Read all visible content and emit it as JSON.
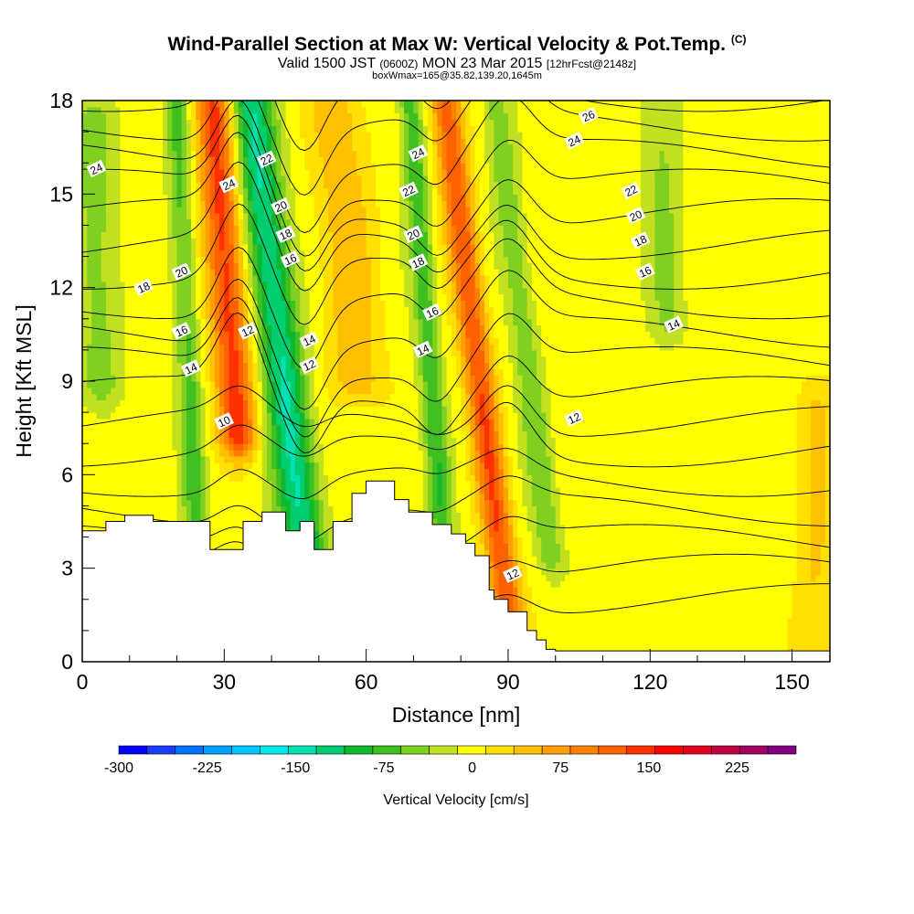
{
  "header": {
    "title": "Wind-Parallel Section at Max W: Vertical Velocity & Pot.Temp.",
    "copyright": "(C)",
    "valid_main": "Valid 1500 JST",
    "valid_utc": "(0600Z)",
    "valid_date": "MON 23 Mar 2015",
    "valid_fcst": "[12hrFcst@2148z]",
    "box_line": "boxWmax=165@35.82,139.20,1645m"
  },
  "chart_data": {
    "type": "heatmap",
    "xlabel": "Distance [nm]",
    "ylabel": "Height [Kft MSL]",
    "xlim": [
      0,
      158
    ],
    "ylim": [
      0,
      18
    ],
    "x_ticks": [
      "0",
      "30",
      "60",
      "90",
      "120",
      "150"
    ],
    "x_tick_values": [
      0,
      30,
      60,
      90,
      120,
      150
    ],
    "y_ticks": [
      "0",
      "3",
      "6",
      "9",
      "12",
      "15",
      "18"
    ],
    "y_tick_values": [
      0,
      3,
      6,
      9,
      12,
      15,
      18
    ],
    "colorbar": {
      "title": "Vertical Velocity [cm/s]",
      "labels": [
        "-300",
        "-225",
        "-150",
        "-75",
        "0",
        "75",
        "150",
        "225"
      ],
      "label_values": [
        -300,
        -225,
        -150,
        -75,
        0,
        75,
        150,
        225
      ],
      "range": [
        -300,
        275
      ],
      "step": 25,
      "colors": [
        "#0000ff",
        "#1a3cff",
        "#0070ff",
        "#00a0ff",
        "#00c8ff",
        "#00e8e8",
        "#00e0b0",
        "#00cc70",
        "#10b830",
        "#40c020",
        "#80d020",
        "#c0e020",
        "#ffff00",
        "#ffe000",
        "#ffc000",
        "#ffa000",
        "#ff8000",
        "#ff6000",
        "#ff3000",
        "#ff0000",
        "#e00020",
        "#c00040",
        "#a00060",
        "#800080"
      ]
    },
    "terrain_kft": [
      [
        0,
        4.2
      ],
      [
        5,
        4.2
      ],
      [
        5,
        4.5
      ],
      [
        9,
        4.5
      ],
      [
        9,
        4.7
      ],
      [
        15,
        4.7
      ],
      [
        15,
        4.5
      ],
      [
        27,
        4.5
      ],
      [
        27,
        3.6
      ],
      [
        34,
        3.6
      ],
      [
        34,
        4.5
      ],
      [
        38,
        4.5
      ],
      [
        38,
        4.8
      ],
      [
        43,
        4.8
      ],
      [
        43,
        4.2
      ],
      [
        46,
        4.2
      ],
      [
        46,
        4.5
      ],
      [
        49,
        4.5
      ],
      [
        49,
        3.6
      ],
      [
        53,
        3.6
      ],
      [
        53,
        4.5
      ],
      [
        57,
        4.5
      ],
      [
        57,
        5.4
      ],
      [
        60,
        5.4
      ],
      [
        60,
        5.8
      ],
      [
        66,
        5.8
      ],
      [
        66,
        5.2
      ],
      [
        69,
        5.2
      ],
      [
        69,
        4.8
      ],
      [
        74,
        4.8
      ],
      [
        74,
        4.4
      ],
      [
        78,
        4.4
      ],
      [
        78,
        4.1
      ],
      [
        81,
        4.1
      ],
      [
        81,
        3.8
      ],
      [
        83,
        3.8
      ],
      [
        83,
        3.4
      ],
      [
        86,
        3.4
      ],
      [
        86,
        2.3
      ],
      [
        87,
        2.3
      ],
      [
        87,
        2.0
      ],
      [
        90,
        2.0
      ],
      [
        90,
        1.6
      ],
      [
        94,
        1.6
      ],
      [
        94,
        1.0
      ],
      [
        96,
        1.0
      ],
      [
        96,
        0.7
      ],
      [
        98,
        0.7
      ],
      [
        98,
        0.4
      ],
      [
        100,
        0.4
      ],
      [
        100,
        0.35
      ],
      [
        158,
        0.35
      ]
    ],
    "vertical_velocity_features": [
      {
        "x_center": 33,
        "x_width": 4.0,
        "y_bottom": 7.3,
        "y_top": 18,
        "slant": -5.0,
        "value": 150
      },
      {
        "x_center": 47,
        "x_width": 4.5,
        "y_bottom": 3.6,
        "y_top": 18,
        "slant": -8.0,
        "value": -140
      },
      {
        "x_center": 24,
        "x_width": 2.5,
        "y_bottom": 4.5,
        "y_top": 18,
        "slant": -3.0,
        "value": -70
      },
      {
        "x_center": 4,
        "x_width": 4.5,
        "y_bottom": 9.0,
        "y_top": 17,
        "slant": -2.0,
        "value": -50
      },
      {
        "x_center": 76,
        "x_width": 2.5,
        "y_bottom": 4.5,
        "y_top": 18,
        "slant": -5.0,
        "value": -80
      },
      {
        "x_center": 90,
        "x_width": 3.2,
        "y_bottom": 1.5,
        "y_top": 18,
        "slant": -8.0,
        "value": 135
      },
      {
        "x_center": 99,
        "x_width": 3.0,
        "y_bottom": 3.5,
        "y_top": 18,
        "slant": -8.0,
        "value": -55
      },
      {
        "x_center": 58,
        "x_width": 6.0,
        "y_bottom": 9.0,
        "y_top": 18,
        "slant": -5.0,
        "value": 55
      },
      {
        "x_center": 155,
        "x_width": 4.0,
        "y_bottom": 0.4,
        "y_top": 8.0,
        "slant": 0.0,
        "value": 40
      },
      {
        "x_center": 124,
        "x_width": 4.0,
        "y_bottom": 11.0,
        "y_top": 18,
        "slant": -3.0,
        "value": -40
      }
    ],
    "theta_contours": [
      {
        "label": "10",
        "x": 30,
        "y": 7.7
      },
      {
        "label": "12",
        "x": 35,
        "y": 10.6
      },
      {
        "label": "12",
        "x": 48,
        "y": 9.5
      },
      {
        "label": "12",
        "x": 91,
        "y": 2.8
      },
      {
        "label": "12",
        "x": 104,
        "y": 7.8
      },
      {
        "label": "14",
        "x": 23,
        "y": 9.4
      },
      {
        "label": "14",
        "x": 48,
        "y": 10.3
      },
      {
        "label": "14",
        "x": 72,
        "y": 10.0
      },
      {
        "label": "14",
        "x": 125,
        "y": 10.8
      },
      {
        "label": "16",
        "x": 21,
        "y": 10.6
      },
      {
        "label": "16",
        "x": 44,
        "y": 12.9
      },
      {
        "label": "16",
        "x": 74,
        "y": 11.2
      },
      {
        "label": "16",
        "x": 119,
        "y": 12.5
      },
      {
        "label": "18",
        "x": 13,
        "y": 12.0
      },
      {
        "label": "18",
        "x": 43,
        "y": 13.7
      },
      {
        "label": "18",
        "x": 71,
        "y": 12.8
      },
      {
        "label": "18",
        "x": 118,
        "y": 13.5
      },
      {
        "label": "20",
        "x": 21,
        "y": 12.5
      },
      {
        "label": "20",
        "x": 42,
        "y": 14.6
      },
      {
        "label": "20",
        "x": 70,
        "y": 13.7
      },
      {
        "label": "20",
        "x": 117,
        "y": 14.3
      },
      {
        "label": "22",
        "x": 39,
        "y": 16.1
      },
      {
        "label": "22",
        "x": 69,
        "y": 15.1
      },
      {
        "label": "22",
        "x": 116,
        "y": 15.1
      },
      {
        "label": "24",
        "x": 3,
        "y": 15.8
      },
      {
        "label": "24",
        "x": 31,
        "y": 15.3
      },
      {
        "label": "24",
        "x": 71,
        "y": 16.3
      },
      {
        "label": "24",
        "x": 104,
        "y": 16.7
      },
      {
        "label": "26",
        "x": 107,
        "y": 17.5
      }
    ]
  }
}
